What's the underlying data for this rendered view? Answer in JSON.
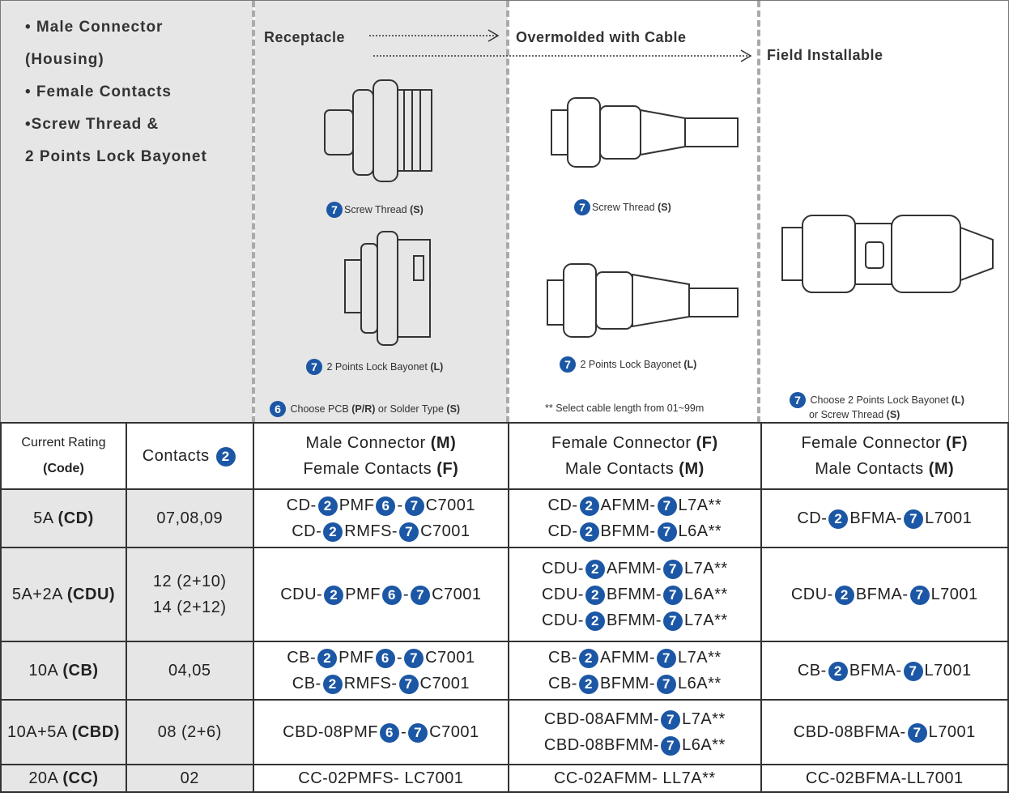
{
  "intro": {
    "lines": [
      "• Male Connector",
      "(Housing)",
      "• Female Contacts",
      "•Screw Thread &",
      "2 Points Lock Bayonet"
    ]
  },
  "receptacle": {
    "title": "Receptacle",
    "captions": [
      [
        {
          "badge": "7"
        },
        "Screw Thread ",
        {
          "bold": "(S)"
        }
      ],
      [
        {
          "badge": "7"
        },
        " 2 Points Lock Bayonet ",
        {
          "bold": "(L)"
        }
      ],
      [
        {
          "badge": "6"
        },
        " Choose PCB ",
        {
          "bold": "(P/R)"
        },
        " or Solder Type ",
        {
          "bold": "(S)"
        }
      ]
    ]
  },
  "overmolded": {
    "title": "Overmolded with Cable",
    "captions": [
      [
        {
          "badge": "7"
        },
        "Screw Thread ",
        {
          "bold": "(S)"
        }
      ],
      [
        {
          "badge": "7"
        },
        " 2 Points Lock Bayonet ",
        {
          "bold": "(L)"
        }
      ],
      [
        "** Select cable length from 01~99m"
      ]
    ]
  },
  "field": {
    "title": "Field Installable",
    "captions": [
      [
        {
          "badge": "7"
        },
        " Choose 2 Points Lock Bayonet ",
        {
          "bold": "(L)"
        }
      ],
      [
        "or Screw Thread ",
        {
          "bold": "(S)"
        }
      ]
    ]
  },
  "table": {
    "header": [
      [
        [
          "Current Rating"
        ],
        [
          {
            "bold": "(Code)"
          }
        ]
      ],
      [
        [
          "Contacts ",
          {
            "badge": "2"
          }
        ]
      ],
      [
        [
          "Male Connector ",
          {
            "bold": "(M)"
          }
        ],
        [
          "Female Contacts ",
          {
            "bold": "(F)"
          }
        ]
      ],
      [
        [
          "Female Connector ",
          {
            "bold": "(F)"
          }
        ],
        [
          "Male Contacts ",
          {
            "bold": "(M)"
          }
        ]
      ],
      [
        [
          "Female Connector ",
          {
            "bold": "(F)"
          }
        ],
        [
          "Male Contacts ",
          {
            "bold": "(M)"
          }
        ]
      ]
    ],
    "rows": [
      [
        [
          [
            "5A ",
            {
              "bold": "(CD)"
            }
          ]
        ],
        [
          [
            "07,08,09"
          ]
        ],
        [
          [
            "CD-",
            {
              "badge": "2"
            },
            "PMF",
            {
              "badge": "6"
            },
            "-",
            {
              "badge": "7"
            },
            "C7001"
          ],
          [
            "CD-",
            {
              "badge": "2"
            },
            "RMFS-",
            {
              "badge": "7"
            },
            "C7001"
          ]
        ],
        [
          [
            "CD-",
            {
              "badge": "2"
            },
            "AFMM-",
            {
              "badge": "7"
            },
            "L7A**"
          ],
          [
            "CD-",
            {
              "badge": "2"
            },
            "BFMM-",
            {
              "badge": "7"
            },
            "L6A**"
          ]
        ],
        [
          [
            "CD-",
            {
              "badge": "2"
            },
            "BFMA-",
            {
              "badge": "7"
            },
            "L7001"
          ]
        ]
      ],
      [
        [
          [
            "5A+2A ",
            {
              "bold": "(CDU)"
            }
          ]
        ],
        [
          [
            "12 (2+10)"
          ],
          [
            "14 (2+12)"
          ]
        ],
        [
          [
            "CDU-",
            {
              "badge": "2"
            },
            "PMF",
            {
              "badge": "6"
            },
            "-",
            {
              "badge": "7"
            },
            "C7001"
          ]
        ],
        [
          [
            "CDU-",
            {
              "badge": "2"
            },
            "AFMM-",
            {
              "badge": "7"
            },
            "L7A**"
          ],
          [
            "CDU-",
            {
              "badge": "2"
            },
            "BFMM-",
            {
              "badge": "7"
            },
            "L6A**"
          ],
          [
            "CDU-",
            {
              "badge": "2"
            },
            "BFMM-",
            {
              "badge": "7"
            },
            "L7A**"
          ]
        ],
        [
          [
            "CDU-",
            {
              "badge": "2"
            },
            "BFMA-",
            {
              "badge": "7"
            },
            "L7001"
          ]
        ]
      ],
      [
        [
          [
            "10A ",
            {
              "bold": "(CB)"
            }
          ]
        ],
        [
          [
            "04,05"
          ]
        ],
        [
          [
            "CB-",
            {
              "badge": "2"
            },
            "PMF",
            {
              "badge": "6"
            },
            "-",
            {
              "badge": "7"
            },
            "C7001"
          ],
          [
            "CB-",
            {
              "badge": "2"
            },
            "RMFS-",
            {
              "badge": "7"
            },
            "C7001"
          ]
        ],
        [
          [
            "CB-",
            {
              "badge": "2"
            },
            "AFMM-",
            {
              "badge": "7"
            },
            "L7A**"
          ],
          [
            "CB-",
            {
              "badge": "2"
            },
            "BFMM-",
            {
              "badge": "7"
            },
            "L6A**"
          ]
        ],
        [
          [
            "CB-",
            {
              "badge": "2"
            },
            "BFMA-",
            {
              "badge": "7"
            },
            "L7001"
          ]
        ]
      ],
      [
        [
          [
            "10A+5A ",
            {
              "bold": "(CBD)"
            }
          ]
        ],
        [
          [
            "08 (2+6)"
          ]
        ],
        [
          [
            "CBD-08PMF",
            {
              "badge": "6"
            },
            "-",
            {
              "badge": "7"
            },
            "C7001"
          ]
        ],
        [
          [
            "CBD-08AFMM-",
            {
              "badge": "7"
            },
            "L7A**"
          ],
          [
            "CBD-08BFMM-",
            {
              "badge": "7"
            },
            "L6A**"
          ]
        ],
        [
          [
            "CBD-08BFMA-",
            {
              "badge": "7"
            },
            "L7001"
          ]
        ]
      ],
      [
        [
          [
            "20A ",
            {
              "bold": "(CC)"
            }
          ]
        ],
        [
          [
            "02"
          ]
        ],
        [
          [
            "CC-02PMFS- LC7001"
          ]
        ],
        [
          [
            "CC-02AFMM- LL7A**"
          ]
        ],
        [
          [
            "CC-02BFMA-LL7001"
          ]
        ]
      ]
    ]
  }
}
